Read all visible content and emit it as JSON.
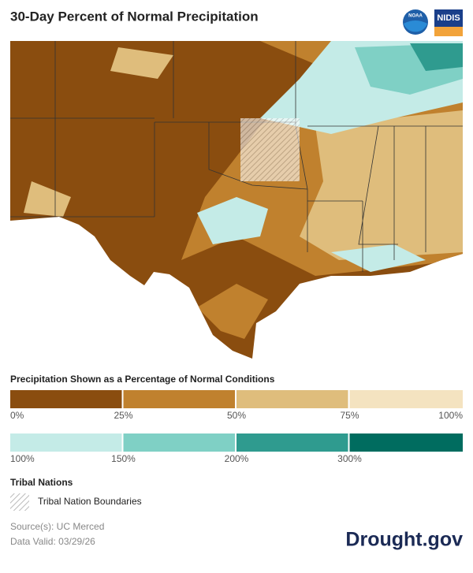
{
  "header": {
    "title": "30-Day Percent of Normal Precipitation",
    "logos": [
      "NOAA",
      "NIDIS"
    ]
  },
  "legend": {
    "title": "Precipitation Shown as a Percentage of Normal Conditions",
    "dry": {
      "labels": [
        "0%",
        "25%",
        "50%",
        "75%",
        "100%"
      ],
      "colors": [
        "#8a4d0f",
        "#c0812e",
        "#dfbd7c",
        "#f4e3c0"
      ]
    },
    "wet": {
      "labels": [
        "100%",
        "150%",
        "200%",
        "300%"
      ],
      "colors": [
        "#c4ebe7",
        "#7fd0c5",
        "#2f9b8f",
        "#006c5f"
      ]
    }
  },
  "tribal": {
    "title": "Tribal Nations",
    "item": "Tribal Nation Boundaries"
  },
  "footer": {
    "source": "Source(s): UC Merced",
    "valid": "Data Valid: 03/29/26",
    "brand": "Drought.gov"
  }
}
